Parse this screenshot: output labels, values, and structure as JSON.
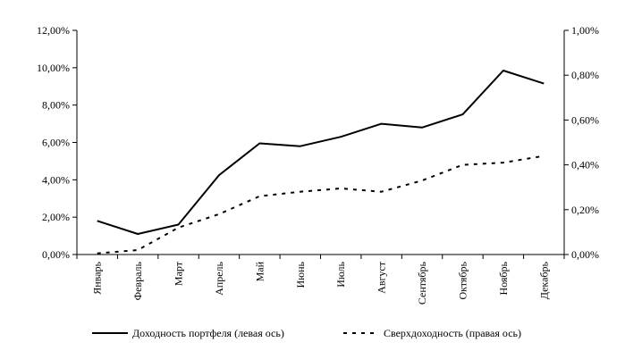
{
  "chart_data": {
    "type": "line",
    "title": "",
    "xlabel": "",
    "ylabel": "",
    "categories": [
      "Январь",
      "Февраль",
      "Март",
      "Апрель",
      "Май",
      "Июнь",
      "Июль",
      "Август",
      "Сентябрь",
      "Октябрь",
      "Ноябрь",
      "Декабрь"
    ],
    "y_left": {
      "ylim": [
        0,
        12
      ],
      "ticks": [
        0,
        2,
        4,
        6,
        8,
        10,
        12
      ],
      "tick_labels": [
        "0,00%",
        "2,00%",
        "4,00%",
        "6,00%",
        "8,00%",
        "10,00%",
        "12,00%"
      ]
    },
    "y_right": {
      "ylim": [
        0,
        1
      ],
      "ticks": [
        0,
        0.2,
        0.4,
        0.6,
        0.8,
        1.0
      ],
      "tick_labels": [
        "0,00%",
        "0,20%",
        "0,40%",
        "0,60%",
        "0,80%",
        "1,00%"
      ]
    },
    "series": [
      {
        "name": "Доходность портфеля (левая ось)",
        "axis": "left",
        "style": "solid",
        "values": [
          1.8,
          1.1,
          1.6,
          4.25,
          5.95,
          5.8,
          6.3,
          7.0,
          6.8,
          7.5,
          9.85,
          9.15
        ]
      },
      {
        "name": "Сверхдоходность (правая ось)",
        "axis": "right",
        "style": "dashed",
        "values": [
          0.005,
          0.02,
          0.12,
          0.18,
          0.26,
          0.28,
          0.295,
          0.28,
          0.33,
          0.4,
          0.41,
          0.44
        ]
      }
    ],
    "grid": false,
    "legend_position": "bottom",
    "colors": {
      "line": "#000000",
      "axis": "#000000"
    }
  }
}
